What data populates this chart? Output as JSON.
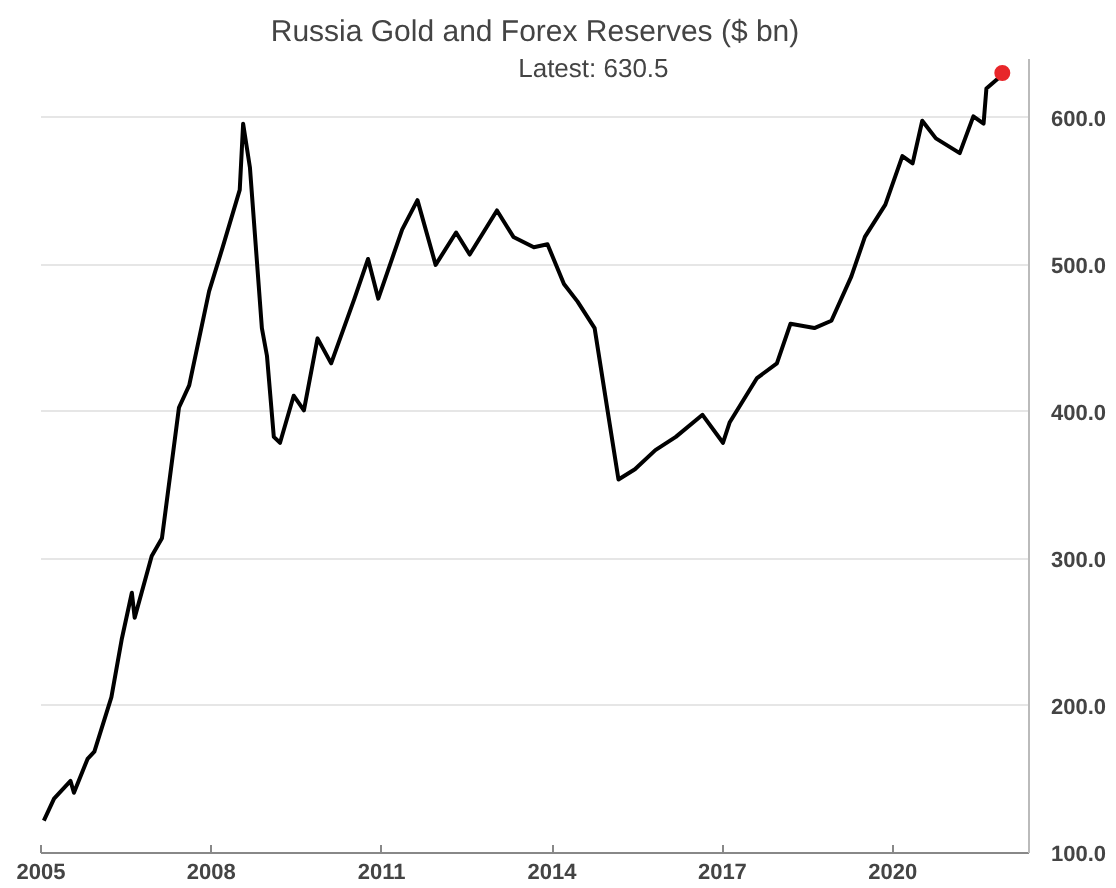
{
  "chart_data": {
    "type": "line",
    "title": "Russia Gold and Forex Reserves ($ bn)",
    "annotations": [
      "Latest:  630.5"
    ],
    "series": [
      {
        "color": "#000000",
        "x": [
          2005.05,
          2005.23,
          2005.52,
          2005.58,
          2005.82,
          2005.94,
          2006.24,
          2006.42,
          2006.6,
          2006.65,
          2006.95,
          2007.13,
          2007.43,
          2007.61,
          2007.96,
          2008.2,
          2008.5,
          2008.56,
          2008.68,
          2008.89,
          2008.98,
          2009.1,
          2009.21,
          2009.45,
          2009.63,
          2009.87,
          2010.11,
          2010.52,
          2010.76,
          2010.94,
          2011.36,
          2011.63,
          2011.95,
          2012.31,
          2012.55,
          2013.03,
          2013.32,
          2013.68,
          2013.92,
          2014.21,
          2014.45,
          2014.75,
          2014.99,
          2015.17,
          2015.46,
          2015.82,
          2016.18,
          2016.65,
          2017.01,
          2017.13,
          2017.61,
          2017.96,
          2018.2,
          2018.62,
          2018.92,
          2019.27,
          2019.51,
          2019.87,
          2020.17,
          2020.35,
          2020.52,
          2020.76,
          2021.18,
          2021.42,
          2021.6,
          2021.65,
          2021.89,
          2021.93
        ],
        "values": [
          122,
          137,
          149,
          141,
          164,
          169,
          206,
          245,
          277,
          260,
          302,
          314,
          403,
          418,
          482,
          512,
          551,
          596,
          566,
          457,
          438,
          383,
          379,
          411,
          401,
          450,
          433,
          477,
          504,
          477,
          524,
          544,
          500,
          522,
          507,
          537,
          519,
          512,
          514,
          487,
          475,
          457,
          398,
          354,
          361,
          374,
          383,
          398,
          379,
          393,
          423,
          433,
          460,
          457,
          462,
          492,
          519,
          541,
          574,
          569,
          598,
          586,
          576,
          601,
          596,
          620,
          628,
          630.5
        ]
      },
      {
        "type": "scatter",
        "color": "#e8262a",
        "x": [
          2021.93
        ],
        "values": [
          630.5
        ]
      }
    ],
    "xlim": [
      2005,
      2022.4
    ],
    "xticks": [
      2005,
      2008,
      2011,
      2014,
      2017,
      2020
    ],
    "ylim": [
      100,
      640
    ],
    "yticks": [
      {
        "value": 100,
        "label": "100.0"
      },
      {
        "value": 200,
        "label": "200.0"
      },
      {
        "value": 300,
        "label": "300.0"
      },
      {
        "value": 400,
        "label": "400.0"
      },
      {
        "value": 500,
        "label": "500.0"
      },
      {
        "value": 600,
        "label": "600.0"
      }
    ],
    "grid": "y"
  }
}
